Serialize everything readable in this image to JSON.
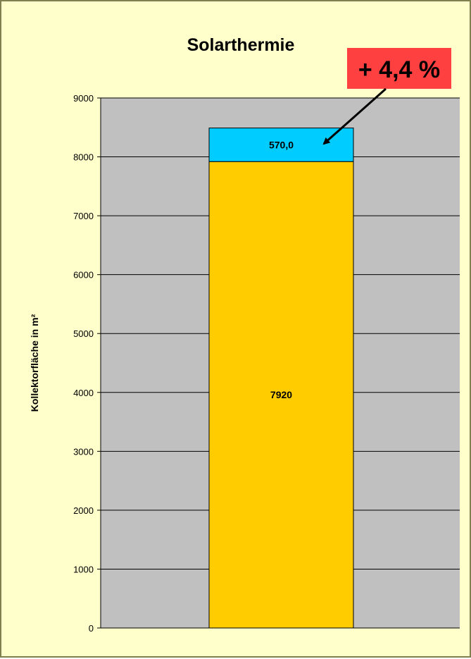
{
  "chart_data": {
    "type": "bar",
    "stacked": true,
    "title": "Solarthermie",
    "ylabel": "Kollektorfläche in m²",
    "xlabel": "",
    "ylim": [
      0,
      9000
    ],
    "yticks": [
      0,
      1000,
      2000,
      3000,
      4000,
      5000,
      6000,
      7000,
      8000,
      9000
    ],
    "grid": true,
    "categories": [
      ""
    ],
    "series": [
      {
        "values": [
          7920
        ],
        "label": "7920",
        "color": "#ffcc00"
      },
      {
        "values": [
          570
        ],
        "label": "570,0",
        "color": "#00ccff"
      }
    ],
    "annotation": {
      "text": "+ 4,4 %",
      "color": "#ff4040"
    },
    "colors": {
      "frame": "#ffffcc",
      "plot_area": "#c0c0c0",
      "gridline": "#000000"
    }
  }
}
